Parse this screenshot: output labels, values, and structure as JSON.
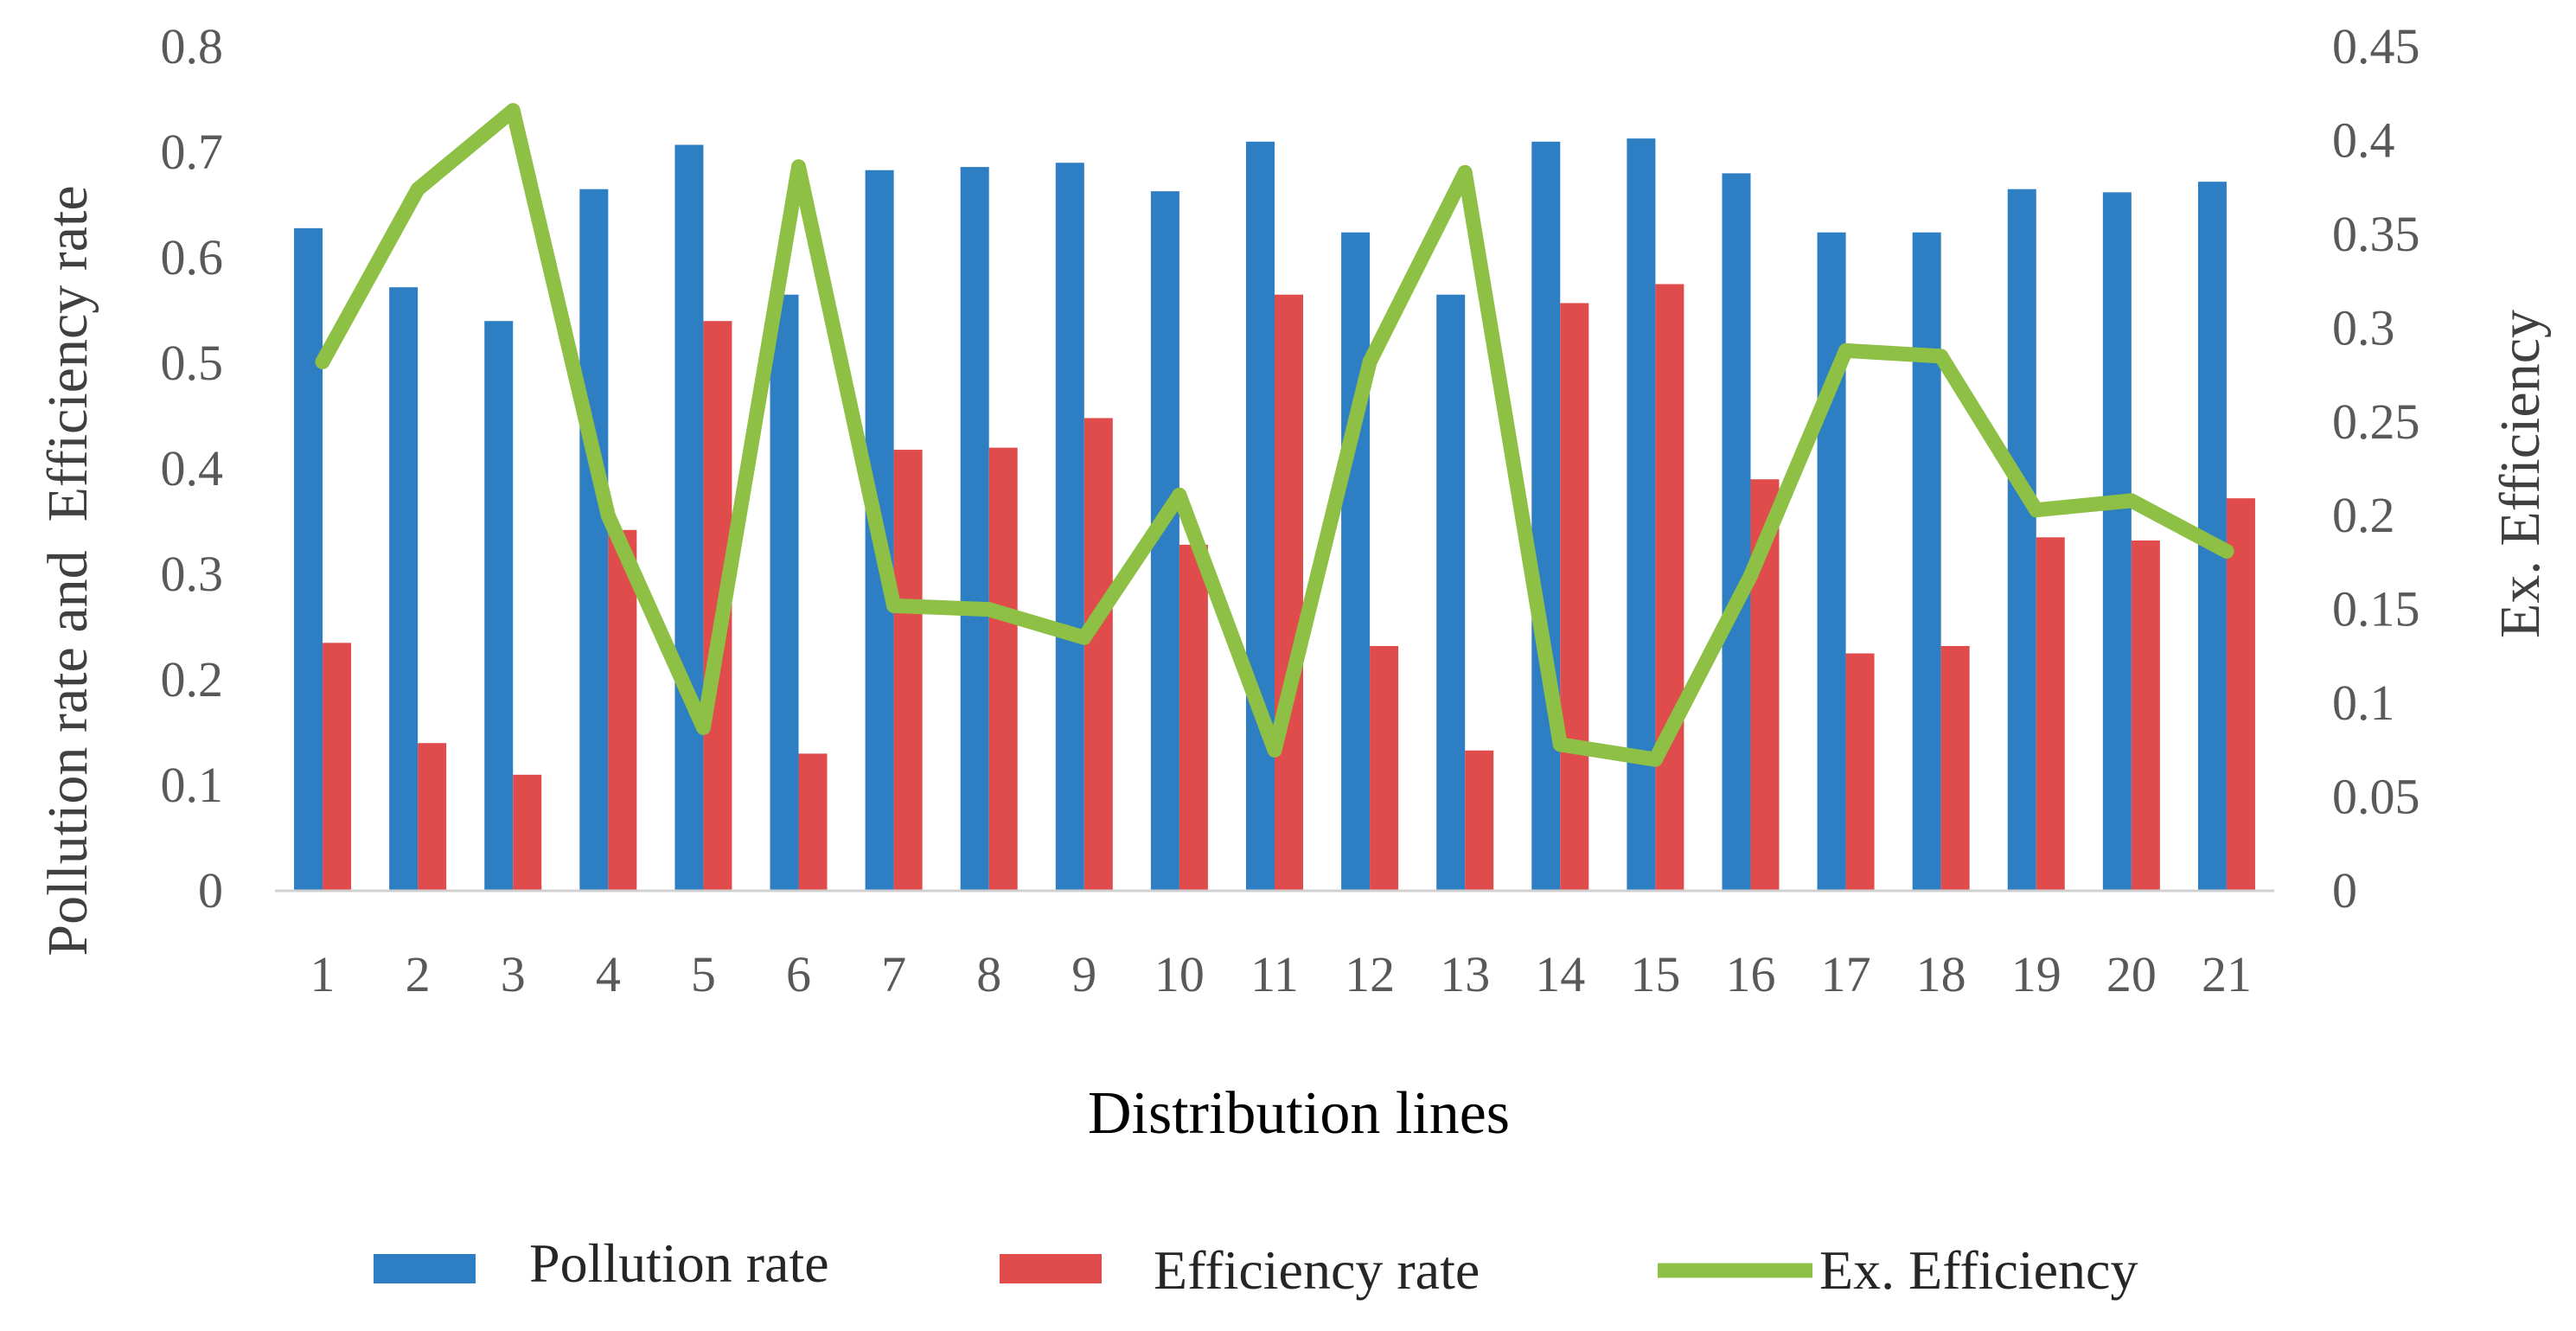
{
  "chart_data": {
    "type": "bar",
    "title": "",
    "xlabel": "Distribution lines",
    "ylabel": "Pollution rate and  Efficiency rate",
    "y2label": "Ex. Efficiency",
    "categories": [
      "1",
      "2",
      "3",
      "4",
      "5",
      "6",
      "7",
      "8",
      "9",
      "10",
      "11",
      "12",
      "13",
      "14",
      "15",
      "16",
      "17",
      "18",
      "19",
      "20",
      "21"
    ],
    "ylim": [
      0,
      0.8
    ],
    "yticks": [
      "0",
      "0.1",
      "0.2",
      "0.3",
      "0.4",
      "0.5",
      "0.6",
      "0.7",
      "0.8"
    ],
    "y2lim": [
      0,
      0.45
    ],
    "y2ticks": [
      "0",
      "0.05",
      "0.1",
      "0.15",
      "0.2",
      "0.25",
      "0.3",
      "0.35",
      "0.4",
      "0.45"
    ],
    "grid": false,
    "legend_position": "bottom",
    "series": [
      {
        "name": "Pollution rate",
        "kind": "bar",
        "axis": "left",
        "color": "#2E7EC4",
        "values": [
          0.628,
          0.572,
          0.54,
          0.665,
          0.707,
          0.565,
          0.683,
          0.686,
          0.69,
          0.663,
          0.71,
          0.624,
          0.565,
          0.71,
          0.713,
          0.68,
          0.624,
          0.624,
          0.665,
          0.662,
          0.672
        ]
      },
      {
        "name": "Efficiency rate",
        "kind": "bar",
        "axis": "left",
        "color": "#E04C4C",
        "values": [
          0.235,
          0.14,
          0.11,
          0.342,
          0.54,
          0.13,
          0.418,
          0.42,
          0.448,
          0.328,
          0.565,
          0.232,
          0.133,
          0.557,
          0.575,
          0.39,
          0.225,
          0.232,
          0.335,
          0.332,
          0.372
        ]
      },
      {
        "name": "Ex. Efficiency",
        "kind": "line",
        "axis": "right",
        "color": "#8DC044",
        "values": [
          0.282,
          0.374,
          0.416,
          0.2,
          0.087,
          0.386,
          0.152,
          0.15,
          0.135,
          0.211,
          0.075,
          0.282,
          0.383,
          0.078,
          0.07,
          0.168,
          0.288,
          0.285,
          0.203,
          0.208,
          0.181
        ]
      }
    ]
  }
}
